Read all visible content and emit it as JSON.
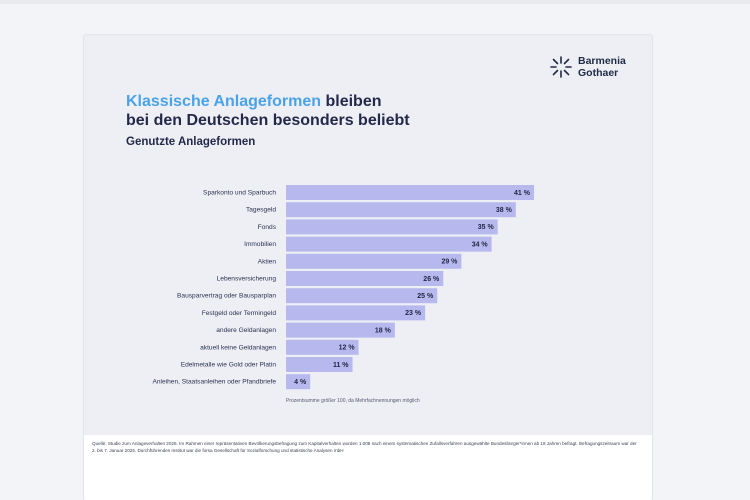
{
  "brand": {
    "logo_line1": "Barmenia",
    "logo_line2": "Gothaer",
    "accent_color": "#4aa3e8",
    "bar_color": "#b7b9ee",
    "text_color": "#24294a"
  },
  "heading": {
    "title_accent": "Klassische Anlageformen",
    "title_rest1": " bleiben",
    "title_line2": "bei den Deutschen besonders beliebt"
  },
  "chart_data": {
    "type": "bar",
    "orientation": "horizontal",
    "title": "Genutzte Anlageformen",
    "categories": [
      "Sparkonto und Sparbuch",
      "Tagesgeld",
      "Fonds",
      "Immobilien",
      "Aktien",
      "Lebensversicherung",
      "Bausparvertrag oder Bausparplan",
      "Festgeld oder Termingeld",
      "andere Geldanlagen",
      "aktuell keine Geldanlagen",
      "Edelmetalle wie Gold oder Platin",
      "Anleihen, Staatsanleihen oder Pfandbriefe"
    ],
    "values": [
      41,
      38,
      35,
      34,
      29,
      26,
      25,
      23,
      18,
      12,
      11,
      4
    ],
    "value_labels": [
      "41 %",
      "38 %",
      "35 %",
      "34 %",
      "29 %",
      "26 %",
      "25 %",
      "23 %",
      "18 %",
      "12 %",
      "11 %",
      "4 %"
    ],
    "unit": "%",
    "xlim": [
      0,
      41
    ],
    "grid": false,
    "note": "Prozentsumme größer 100, da Mehrfachnennungen möglich"
  },
  "footer": {
    "source": "Quelle: Studie zum Anlageverhalten 2026. Im Rahmen einer repräsentativen Bevölkerungsbefragung zum Kapitalverhalten wurden 1.008 nach einem systematischen Zufallsverfahren ausgewählte Bundesbürger*innen ab 18 Jahren befragt. Befragungszeitraum war der 2. bis 7. Januar 2025. Durchführendes Institut war die forsa Gesellschaft für Sozialforschung und statistische Analysen mbH"
  }
}
